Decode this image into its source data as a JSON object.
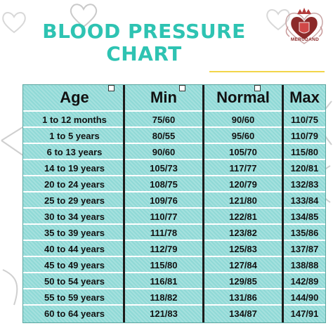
{
  "title": {
    "line1": "BLOOD PRESSURE",
    "line2": "CHART"
  },
  "logo": {
    "text": "MERUDAND"
  },
  "colors": {
    "title": "#2ec3b2",
    "table_bg": "#8fd9d6",
    "accent_line": "#f2d54a",
    "logo": "#8c2a2a"
  },
  "table": {
    "headers": [
      "Age",
      "Min",
      "Normal",
      "Max"
    ],
    "rows": [
      [
        "1 to 12 months",
        "75/60",
        "90/60",
        "110/75"
      ],
      [
        "1 to 5 years",
        "80/55",
        "95/60",
        "110/79"
      ],
      [
        "6 to 13 years",
        "90/60",
        "105/70",
        "115/80"
      ],
      [
        "14 to 19 years",
        "105/73",
        "117/77",
        "120/81"
      ],
      [
        "20 to 24 years",
        "108/75",
        "120/79",
        "132/83"
      ],
      [
        "25 to 29 years",
        "109/76",
        "121/80",
        "133/84"
      ],
      [
        "30 to 34 years",
        "110/77",
        "122/81",
        "134/85"
      ],
      [
        "35 to 39 years",
        "111/78",
        "123/82",
        "135/86"
      ],
      [
        "40 to 44 years",
        "112/79",
        "125/83",
        "137/87"
      ],
      [
        "45 to 49 years",
        "115/80",
        "127/84",
        "138/88"
      ],
      [
        "50 to 54 years",
        "116/81",
        "129/85",
        "142/89"
      ],
      [
        "55 to 59 years",
        "118/82",
        "131/86",
        "144/90"
      ],
      [
        "60 to 64 years",
        "121/83",
        "134/87",
        "147/91"
      ]
    ]
  }
}
